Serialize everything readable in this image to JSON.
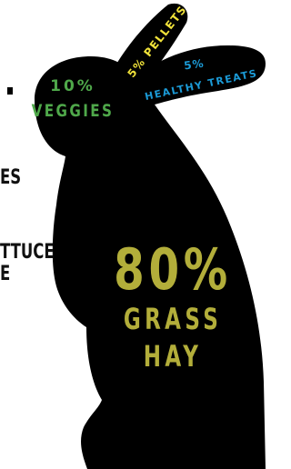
{
  "cropped_left": {
    "line_1": "ES",
    "line_2": "TTUCE",
    "line_3": "E"
  },
  "sections": [
    {
      "percent": "10%",
      "label": "VEGGIES"
    },
    {
      "label": "5% PELLETS"
    },
    {
      "percent": "5%",
      "label": "HEALTHY TREATS"
    },
    {
      "percent": "80%",
      "label_1": "GRASS",
      "label_2": "HAY"
    }
  ]
}
